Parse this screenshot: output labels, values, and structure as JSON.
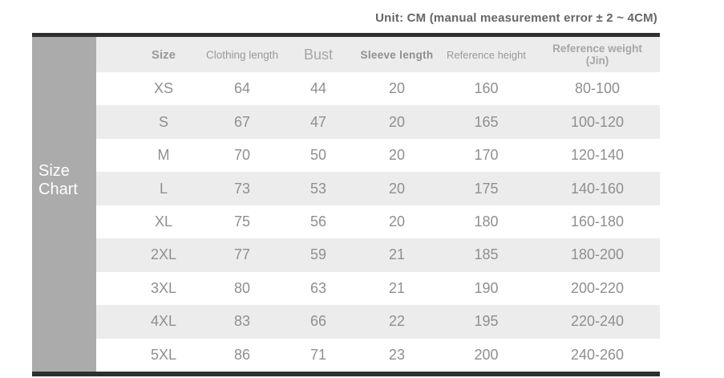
{
  "unit_note": "Unit: CM (manual measurement error ± 2 ~ 4CM)",
  "sidebar": {
    "label": "Size Chart"
  },
  "table": {
    "headers": {
      "size": "Size",
      "clothing_length": "Clothing length",
      "bust": "Bust",
      "sleeve_length": "Sleeve length",
      "reference_height": "Reference height",
      "reference_weight": "Reference weight (Jin)"
    },
    "rows": [
      {
        "size": "XS",
        "clothing_length": "64",
        "bust": "44",
        "sleeve_length": "20",
        "reference_height": "160",
        "reference_weight": "80-100"
      },
      {
        "size": "S",
        "clothing_length": "67",
        "bust": "47",
        "sleeve_length": "20",
        "reference_height": "165",
        "reference_weight": "100-120"
      },
      {
        "size": "M",
        "clothing_length": "70",
        "bust": "50",
        "sleeve_length": "20",
        "reference_height": "170",
        "reference_weight": "120-140"
      },
      {
        "size": "L",
        "clothing_length": "73",
        "bust": "53",
        "sleeve_length": "20",
        "reference_height": "175",
        "reference_weight": "140-160"
      },
      {
        "size": "XL",
        "clothing_length": "75",
        "bust": "56",
        "sleeve_length": "20",
        "reference_height": "180",
        "reference_weight": "160-180"
      },
      {
        "size": "2XL",
        "clothing_length": "77",
        "bust": "59",
        "sleeve_length": "21",
        "reference_height": "185",
        "reference_weight": "180-200"
      },
      {
        "size": "3XL",
        "clothing_length": "80",
        "bust": "63",
        "sleeve_length": "21",
        "reference_height": "190",
        "reference_weight": "200-220"
      },
      {
        "size": "4XL",
        "clothing_length": "83",
        "bust": "66",
        "sleeve_length": "22",
        "reference_height": "195",
        "reference_weight": "220-240"
      },
      {
        "size": "5XL",
        "clothing_length": "86",
        "bust": "71",
        "sleeve_length": "23",
        "reference_height": "200",
        "reference_weight": "240-260"
      }
    ]
  },
  "chart_data": {
    "type": "table",
    "title": "Size Chart",
    "note": "Unit: CM (manual measurement error ± 2 ~ 4CM)",
    "columns": [
      "Size",
      "Clothing length",
      "Bust",
      "Sleeve length",
      "Reference height",
      "Reference weight (Jin)"
    ],
    "rows": [
      [
        "XS",
        64,
        44,
        20,
        160,
        "80-100"
      ],
      [
        "S",
        67,
        47,
        20,
        165,
        "100-120"
      ],
      [
        "M",
        70,
        50,
        20,
        170,
        "120-140"
      ],
      [
        "L",
        73,
        53,
        20,
        175,
        "140-160"
      ],
      [
        "XL",
        75,
        56,
        20,
        180,
        "160-180"
      ],
      [
        "2XL",
        77,
        59,
        21,
        185,
        "180-200"
      ],
      [
        "3XL",
        80,
        63,
        21,
        190,
        "200-220"
      ],
      [
        "4XL",
        83,
        66,
        22,
        195,
        "220-240"
      ],
      [
        "5XL",
        86,
        71,
        23,
        200,
        "240-260"
      ]
    ]
  },
  "colors": {
    "sidebar_bg": "#ababab",
    "stripe_bg": "#ececec",
    "border_dark": "#2f2f2f",
    "data_text": "#8f8f8f",
    "header_text": "#999999",
    "note_text": "#666666"
  }
}
